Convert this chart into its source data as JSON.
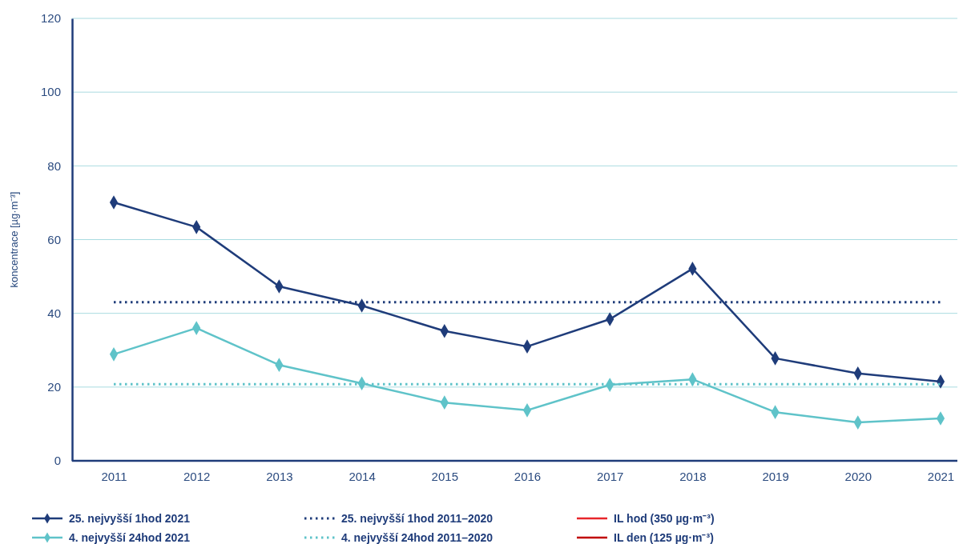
{
  "chart_data": {
    "type": "line",
    "ylabel": "koncentrace [µg·m⁻³]",
    "categories": [
      "2011",
      "2012",
      "2013",
      "2014",
      "2015",
      "2016",
      "2017",
      "2018",
      "2019",
      "2020",
      "2021"
    ],
    "ylim": [
      0,
      120
    ],
    "yticks": [
      0,
      20,
      40,
      60,
      80,
      100,
      120
    ],
    "grid": "y",
    "legend": "bottom",
    "series": [
      {
        "name": "25. nejvyšší 1hod 2021",
        "color": "#1f3c7a",
        "marker": "diamond",
        "line_style": "solid",
        "values": [
          70.1,
          63.4,
          47.3,
          42.1,
          35.2,
          31.0,
          38.4,
          52.1,
          27.8,
          23.7,
          21.5
        ]
      },
      {
        "name": "4. nejvyšší 24hod 2021",
        "color": "#5fc3c9",
        "marker": "diamond",
        "line_style": "solid",
        "values": [
          28.9,
          36.0,
          26.0,
          21.0,
          15.8,
          13.7,
          20.6,
          22.1,
          13.2,
          10.4,
          11.5
        ]
      },
      {
        "name": "25. nejvyšší 1hod 2011–2020",
        "color": "#1f3c7a",
        "marker": "none",
        "line_style": "dotted",
        "values": [
          43,
          43,
          43,
          43,
          43,
          43,
          43,
          43,
          43,
          43,
          43
        ]
      },
      {
        "name": "4. nejvyšší 24hod 2011–2020",
        "color": "#5fc3c9",
        "marker": "none",
        "line_style": "dotted",
        "values": [
          20.8,
          20.8,
          20.8,
          20.8,
          20.8,
          20.8,
          20.8,
          20.8,
          20.8,
          20.8,
          20.8
        ]
      },
      {
        "name": "IL hod (350  µg·m⁻³)",
        "color": "#e8262b",
        "marker": "none",
        "line_style": "solid",
        "values": [
          null,
          null,
          null,
          null,
          null,
          null,
          null,
          null,
          null,
          null,
          null
        ]
      },
      {
        "name": "IL den (125  µg·m⁻³)",
        "color": "#c00000",
        "marker": "none",
        "line_style": "solid",
        "values": [
          null,
          null,
          null,
          null,
          null,
          null,
          null,
          null,
          null,
          null,
          null
        ]
      }
    ]
  }
}
